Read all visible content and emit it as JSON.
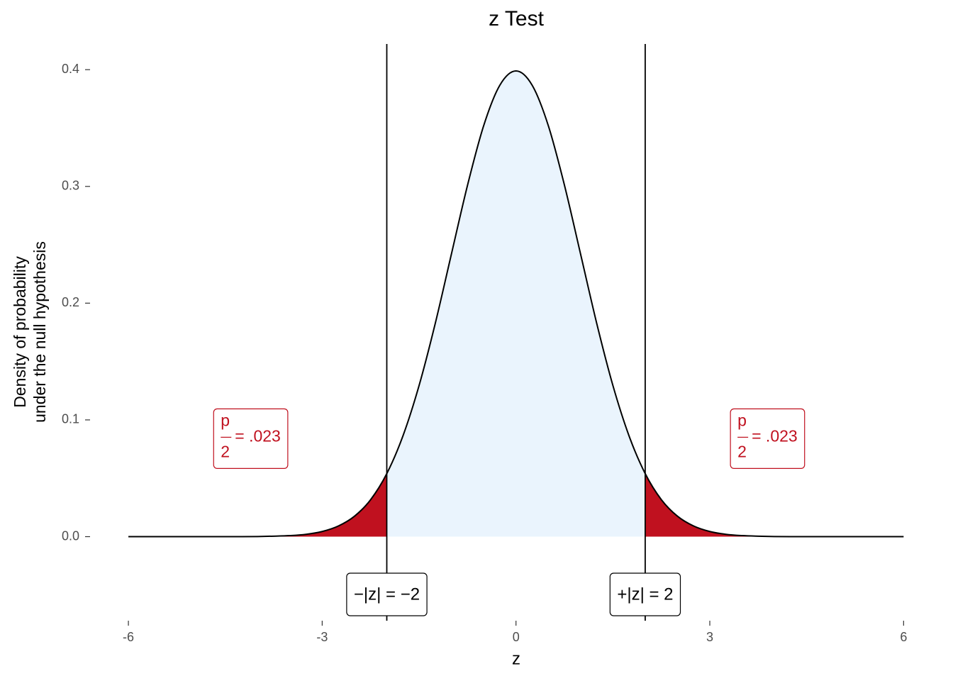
{
  "chart_data": {
    "type": "density",
    "title": "z Test",
    "xlabel": "z",
    "ylabel": [
      "Density of probability",
      "under the null hypothesis"
    ],
    "x": [
      -6,
      -5.75,
      -5.5,
      -5.25,
      -5,
      -4.75,
      -4.5,
      -4.25,
      -4,
      -3.75,
      -3.5,
      -3.25,
      -3,
      -2.75,
      -2.5,
      -2.25,
      -2,
      -1.75,
      -1.5,
      -1.25,
      -1,
      -0.75,
      -0.5,
      -0.25,
      0,
      0.25,
      0.5,
      0.75,
      1,
      1.25,
      1.5,
      1.75,
      2,
      2.25,
      2.5,
      2.75,
      3,
      3.25,
      3.5,
      3.75,
      4,
      4.25,
      4.5,
      4.75,
      5,
      5.25,
      5.5,
      5.75,
      6
    ],
    "values": [
      0,
      0,
      0,
      0,
      0,
      0,
      0,
      0,
      0.0001,
      0.0004,
      0.0009,
      0.002,
      0.0044,
      0.0091,
      0.0175,
      0.0317,
      0.054,
      0.0863,
      0.1295,
      0.1826,
      0.242,
      0.3011,
      0.3521,
      0.3867,
      0.3989,
      0.3867,
      0.3521,
      0.3011,
      0.242,
      0.1826,
      0.1295,
      0.0863,
      0.054,
      0.0317,
      0.0175,
      0.0091,
      0.0044,
      0.002,
      0.0009,
      0.0004,
      0.0001,
      0,
      0,
      0,
      0,
      0,
      0,
      0,
      0
    ],
    "line_color": "#000000",
    "fill_color": "#eaf4fd",
    "tail_color": "#c0111f",
    "critical": [
      -2,
      2
    ],
    "critical_labels": [
      "−|z| = −2",
      "+|z| = 2"
    ],
    "annotations": [
      {
        "numerator": "p",
        "denominator": "2",
        "text": "= .023",
        "x": -4,
        "y": 0.09
      },
      {
        "numerator": "p",
        "denominator": "2",
        "text": "= .023",
        "x": 4,
        "y": 0.09
      }
    ],
    "xlim": [
      -6.6,
      6.6
    ],
    "ylim": [
      -0.072,
      0.422
    ],
    "xticks": [
      -6,
      -3,
      0,
      3,
      6
    ],
    "yticks": [
      {
        "value": 0,
        "label": "0.0"
      },
      0.1,
      0.2,
      0.3,
      0.4
    ]
  }
}
